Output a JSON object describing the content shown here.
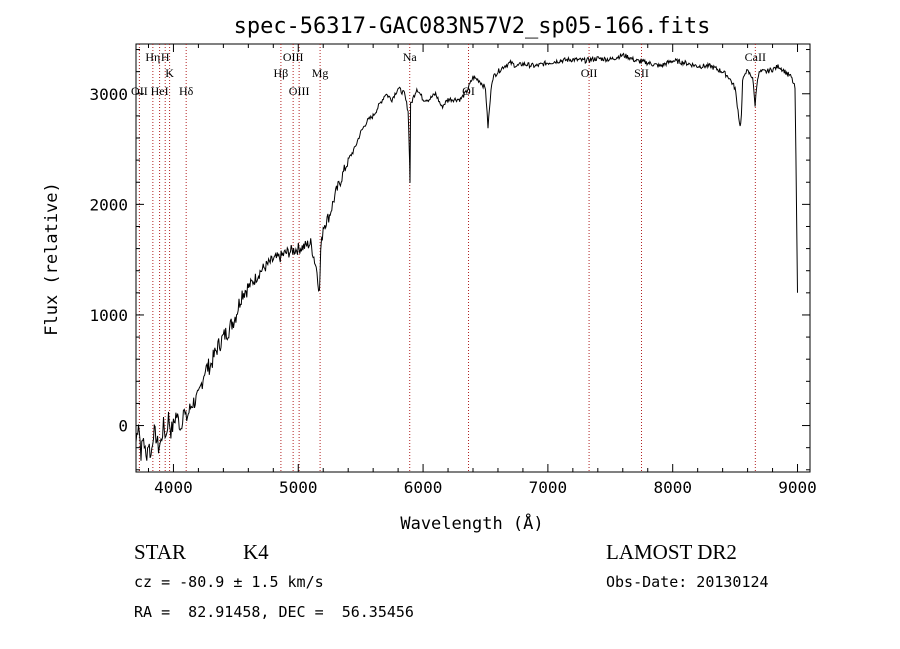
{
  "colors": {
    "axis": "#000000",
    "spectrum": "#000000",
    "line_marker": "#b22222",
    "background": "#ffffff"
  },
  "footer": {
    "object_class": "STAR",
    "subclass": "K4",
    "survey": "LAMOST DR2",
    "velocity": "cz = -80.9 ± 1.5 km/s",
    "obs_date": "Obs-Date: 20130124",
    "coords": "RA =  82.91458, DEC =  56.35456"
  },
  "chart_data": {
    "type": "line",
    "title": "spec-56317-GAC083N57V2_sp05-166.fits",
    "xlabel": "Wavelength (Å)",
    "ylabel": "Flux (relative)",
    "xlim": [
      3700,
      9100
    ],
    "ylim": [
      -420,
      3450
    ],
    "x_ticks": [
      4000,
      5000,
      6000,
      7000,
      8000,
      9000
    ],
    "y_ticks": [
      0,
      1000,
      2000,
      3000
    ],
    "x_tick_labels": [
      "4000",
      "5000",
      "6000",
      "7000",
      "8000",
      "9000"
    ],
    "y_tick_labels": [
      "0",
      "1000",
      "2000",
      "3000"
    ],
    "grid": false,
    "series": [
      {
        "name": "flux",
        "x": [
          3700,
          3720,
          3740,
          3760,
          3780,
          3800,
          3820,
          3840,
          3860,
          3880,
          3900,
          3920,
          3940,
          3960,
          3980,
          4000,
          4020,
          4040,
          4060,
          4080,
          4100,
          4150,
          4200,
          4250,
          4300,
          4350,
          4400,
          4450,
          4500,
          4550,
          4600,
          4650,
          4700,
          4750,
          4800,
          4850,
          4900,
          4950,
          5000,
          5050,
          5100,
          5150,
          5170,
          5180,
          5200,
          5250,
          5300,
          5350,
          5400,
          5450,
          5500,
          5550,
          5600,
          5650,
          5700,
          5750,
          5800,
          5850,
          5880,
          5890,
          5895,
          5900,
          5950,
          6000,
          6050,
          6100,
          6150,
          6200,
          6250,
          6300,
          6350,
          6400,
          6450,
          6500,
          6520,
          6550,
          6560,
          6600,
          6650,
          6700,
          6750,
          6800,
          6900,
          7000,
          7100,
          7200,
          7300,
          7400,
          7500,
          7600,
          7650,
          7700,
          7800,
          7900,
          8000,
          8100,
          8200,
          8300,
          8400,
          8450,
          8500,
          8540,
          8550,
          8560,
          8580,
          8600,
          8640,
          8660,
          8680,
          8700,
          8750,
          8800,
          8850,
          8900,
          8950,
          8980,
          9000
        ],
        "y": [
          -150,
          50,
          -250,
          -100,
          -300,
          -150,
          -280,
          -50,
          -100,
          -200,
          -150,
          0,
          -100,
          80,
          -50,
          0,
          100,
          50,
          -20,
          150,
          50,
          200,
          250,
          500,
          550,
          700,
          800,
          880,
          1000,
          1200,
          1250,
          1320,
          1400,
          1450,
          1500,
          1520,
          1560,
          1580,
          1600,
          1620,
          1650,
          1400,
          1200,
          1580,
          1800,
          1900,
          2100,
          2250,
          2400,
          2500,
          2650,
          2750,
          2800,
          2900,
          3000,
          2950,
          3050,
          3000,
          2850,
          2500,
          2200,
          2900,
          3050,
          2950,
          2950,
          3000,
          2880,
          2950,
          2950,
          2950,
          3020,
          3150,
          3120,
          3050,
          2700,
          3100,
          3150,
          3200,
          3250,
          3280,
          3250,
          3270,
          3250,
          3280,
          3300,
          3310,
          3300,
          3320,
          3310,
          3350,
          3330,
          3300,
          3280,
          3250,
          3300,
          3280,
          3250,
          3250,
          3200,
          3150,
          3050,
          2700,
          2800,
          3100,
          3200,
          3200,
          3150,
          2900,
          3150,
          3200,
          3200,
          3220,
          3250,
          3200,
          3150,
          3050,
          1200
        ]
      }
    ],
    "line_markers": [
      {
        "name": "Hη",
        "x": 3835,
        "label": "Hη",
        "row": 1
      },
      {
        "name": "OII",
        "x": 3727,
        "label": "OII",
        "row": 3
      },
      {
        "name": "HeI",
        "x": 3889,
        "label": "HeI",
        "row": 3
      },
      {
        "name": "H",
        "x": 3934,
        "label": "H",
        "row": 1
      },
      {
        "name": "K",
        "x": 3969,
        "label": "K",
        "row": 2
      },
      {
        "name": "Hδ",
        "x": 4102,
        "label": "Hδ",
        "row": 3
      },
      {
        "name": "Hβ",
        "x": 4861,
        "label": "Hβ",
        "row": 2
      },
      {
        "name": "OIII-4959",
        "x": 4959,
        "label": "OIII",
        "row": 1
      },
      {
        "name": "OIII-5007",
        "x": 5007,
        "label": "OIII",
        "row": 3
      },
      {
        "name": "Mg",
        "x": 5175,
        "label": "Mg",
        "row": 2
      },
      {
        "name": "Na",
        "x": 5893,
        "label": "Na",
        "row": 1
      },
      {
        "name": "OI",
        "x": 6364,
        "label": "OI",
        "row": 3
      },
      {
        "name": "OII-7330",
        "x": 7330,
        "label": "OII",
        "row": 2
      },
      {
        "name": "SII",
        "x": 7750,
        "label": "SII",
        "row": 2
      },
      {
        "name": "CaII",
        "x": 8662,
        "label": "CaII",
        "row": 1
      }
    ]
  }
}
